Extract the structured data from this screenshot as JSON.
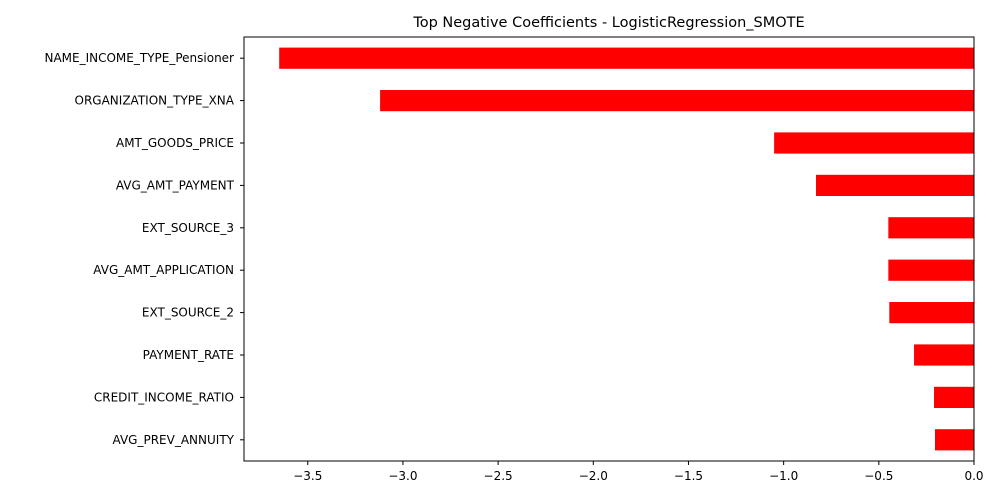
{
  "chart_data": {
    "type": "bar",
    "orientation": "horizontal",
    "title": "Top Negative Coefficients - LogisticRegression_SMOTE",
    "xlabel": "",
    "ylabel": "",
    "categories": [
      "NAME_INCOME_TYPE_Pensioner",
      "ORGANIZATION_TYPE_XNA",
      "AMT_GOODS_PRICE",
      "AVG_AMT_PAYMENT",
      "EXT_SOURCE_3",
      "AVG_AMT_APPLICATION",
      "EXT_SOURCE_2",
      "PAYMENT_RATE",
      "CREDIT_INCOME_RATIO",
      "AVG_PREV_ANNUITY"
    ],
    "values": [
      -3.65,
      -3.12,
      -1.05,
      -0.83,
      -0.45,
      -0.45,
      -0.445,
      -0.315,
      -0.21,
      -0.205
    ],
    "xlim": [
      -3.835,
      0.0
    ],
    "xticks": [
      -3.5,
      -3.0,
      -2.5,
      -2.0,
      -1.5,
      -1.0,
      -0.5,
      0.0
    ],
    "xtick_labels": [
      "−3.5",
      "−3.0",
      "−2.5",
      "−2.0",
      "−1.5",
      "−1.0",
      "−0.5",
      "0.0"
    ],
    "bar_color": "#ff0000",
    "grid": false,
    "legend": "none"
  }
}
